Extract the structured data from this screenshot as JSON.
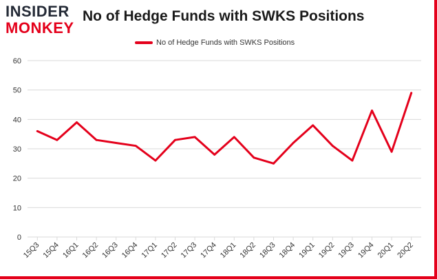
{
  "logo": {
    "line1": "INSIDER",
    "line2": "MONKEY"
  },
  "colors": {
    "series": "#e4001b",
    "grid": "#d9d9d9",
    "frame": "#e4001b",
    "logo_dark": "#242a36"
  },
  "chart_data": {
    "type": "line",
    "title": "No of Hedge Funds with SWKS Positions",
    "xlabel": "",
    "ylabel": "",
    "ylim": [
      0,
      60
    ],
    "yticks": [
      0,
      10,
      20,
      30,
      40,
      50,
      60
    ],
    "grid": "horizontal",
    "legend": "top-center",
    "categories": [
      "15Q3",
      "15Q4",
      "16Q1",
      "16Q2",
      "16Q3",
      "16Q4",
      "17Q1",
      "17Q2",
      "17Q3",
      "17Q4",
      "18Q1",
      "18Q2",
      "18Q3",
      "18Q4",
      "19Q1",
      "19Q2",
      "19Q3",
      "19Q4",
      "20Q1",
      "20Q2"
    ],
    "series": [
      {
        "name": "No of Hedge Funds with SWKS Positions",
        "values": [
          36,
          33,
          39,
          33,
          32,
          31,
          26,
          33,
          34,
          28,
          34,
          27,
          25,
          32,
          38,
          31,
          26,
          43,
          29,
          49
        ]
      }
    ]
  }
}
